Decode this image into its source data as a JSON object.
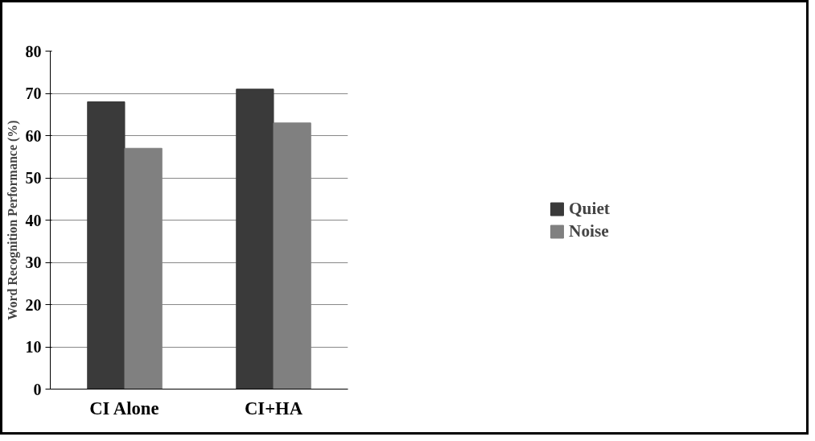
{
  "chart_data": {
    "type": "bar",
    "ylabel": "Word Recognition Performance (%)",
    "categories": [
      "CI Alone",
      "CI+HA"
    ],
    "series": [
      {
        "name": "Quiet",
        "color": "#3a3a3a",
        "values": [
          68,
          71
        ]
      },
      {
        "name": "Noise",
        "color": "#808080",
        "values": [
          57,
          63
        ]
      }
    ],
    "ylim": [
      0,
      80
    ],
    "yticks": [
      0,
      10,
      20,
      30,
      40,
      50,
      60,
      70,
      80
    ],
    "grid": "y",
    "legend": "right"
  }
}
